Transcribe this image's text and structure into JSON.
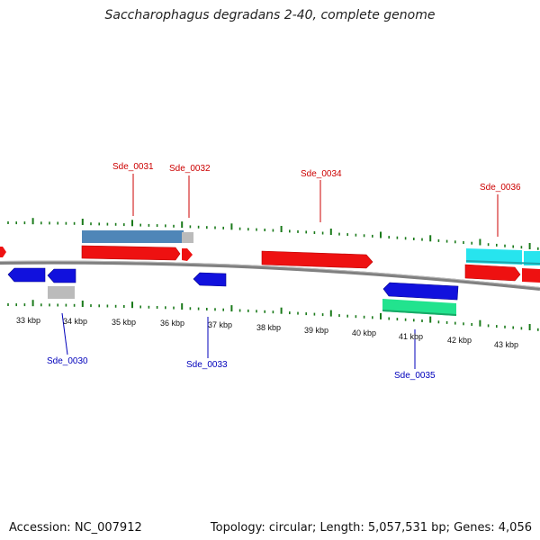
{
  "header": {
    "title": "Saccharophagus degradans 2-40, complete genome"
  },
  "footer": {
    "accession": "Accession: NC_007912",
    "summary": "Topology: circular; Length: 5,057,531 bp; Genes: 4,056"
  },
  "colors": {
    "forward_gene": "#ee1111",
    "reverse_gene": "#1111dd",
    "forward_label": "#cc0000",
    "reverse_label": "#0000bb",
    "backbone": "#808080",
    "ticks": "#1a7a1a",
    "steelblue_feature": "#4f86b8",
    "cyan_feature": "#27e4ee",
    "green_feature": "#22e38e",
    "grey_feature": "#bbbbbb"
  },
  "map": {
    "scale_labels": [
      "33 kbp",
      "34 kbp",
      "35 kbp",
      "36 kbp",
      "37 kbp",
      "38 kbp",
      "39 kbp",
      "40 kbp",
      "41 kbp",
      "42 kbp",
      "43 kbp"
    ],
    "forward_gene_labels": [
      "Sde_0031",
      "Sde_0032",
      "Sde_0034",
      "Sde_0036"
    ],
    "reverse_gene_labels": [
      "Sde_0030",
      "Sde_0033",
      "Sde_0035"
    ]
  }
}
